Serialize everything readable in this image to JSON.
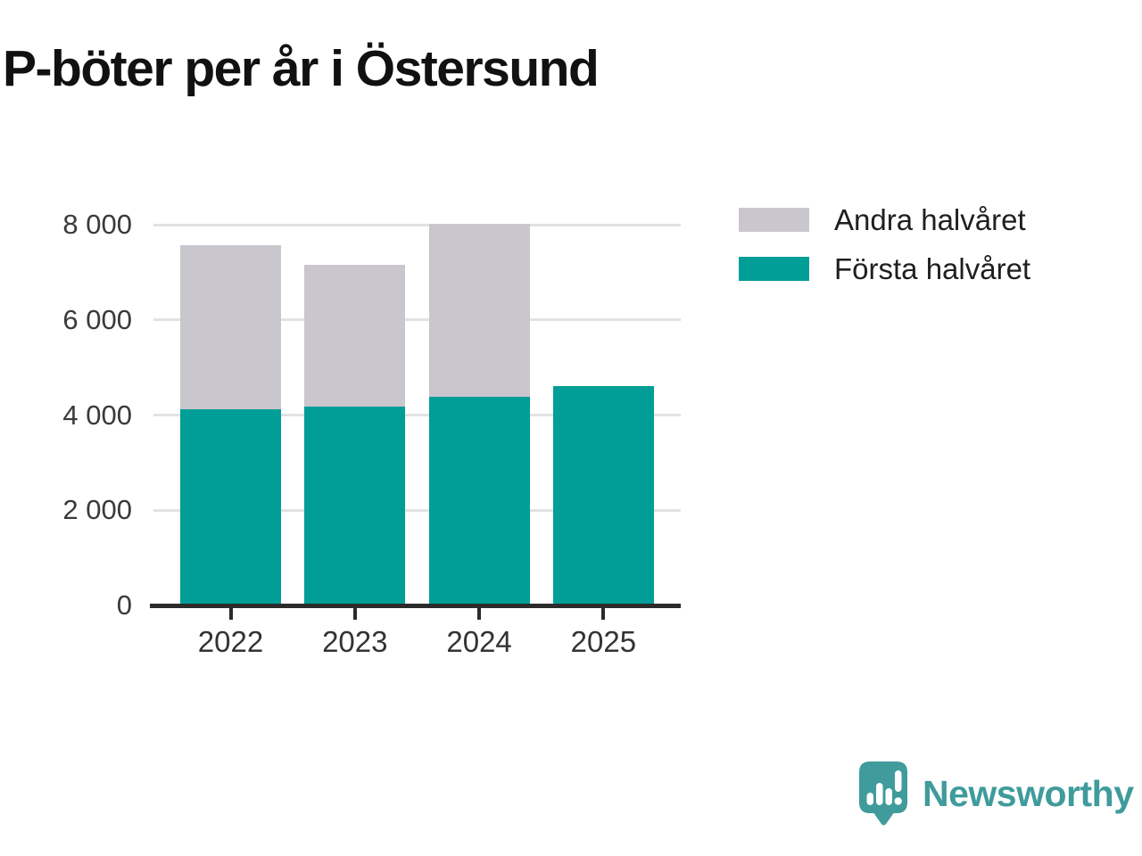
{
  "title": "P-böter per år i Östersund",
  "chart_data": {
    "type": "bar",
    "stacked": true,
    "title": "P-böter per år i Östersund",
    "categories": [
      "2022",
      "2023",
      "2024",
      "2025"
    ],
    "series": [
      {
        "name": "Första halvåret",
        "color": "#009e96",
        "values": [
          4130,
          4170,
          4390,
          4600
        ]
      },
      {
        "name": "Andra halvåret",
        "color": "#c9c6ce",
        "values": [
          3440,
          2980,
          3630,
          0
        ]
      }
    ],
    "totals": [
      7570,
      7150,
      8020,
      4600
    ],
    "xlabel": "",
    "ylabel": "",
    "ylim": [
      0,
      8000
    ],
    "yticks": [
      0,
      2000,
      4000,
      6000,
      8000
    ],
    "ytick_labels": [
      "0",
      "2 000",
      "4 000",
      "6 000",
      "8 000"
    ],
    "grid": true,
    "legend_position": "top-right"
  },
  "legend": {
    "items": [
      {
        "label": "Andra halvåret",
        "color": "#c9c6ce"
      },
      {
        "label": "Första halvåret",
        "color": "#009e96"
      }
    ]
  },
  "branding": {
    "logo_text": "Newsworthy",
    "logo_color": "#3f9b9c",
    "logo_icon": "speech-bubble-bar-chart-icon"
  },
  "colors": {
    "first_half": "#009e96",
    "second_half": "#c9c6ce",
    "gridline": "#e2e2e2",
    "axis": "#2b2b2b",
    "title_text": "#111111",
    "tick_text": "#3a3a3a"
  }
}
